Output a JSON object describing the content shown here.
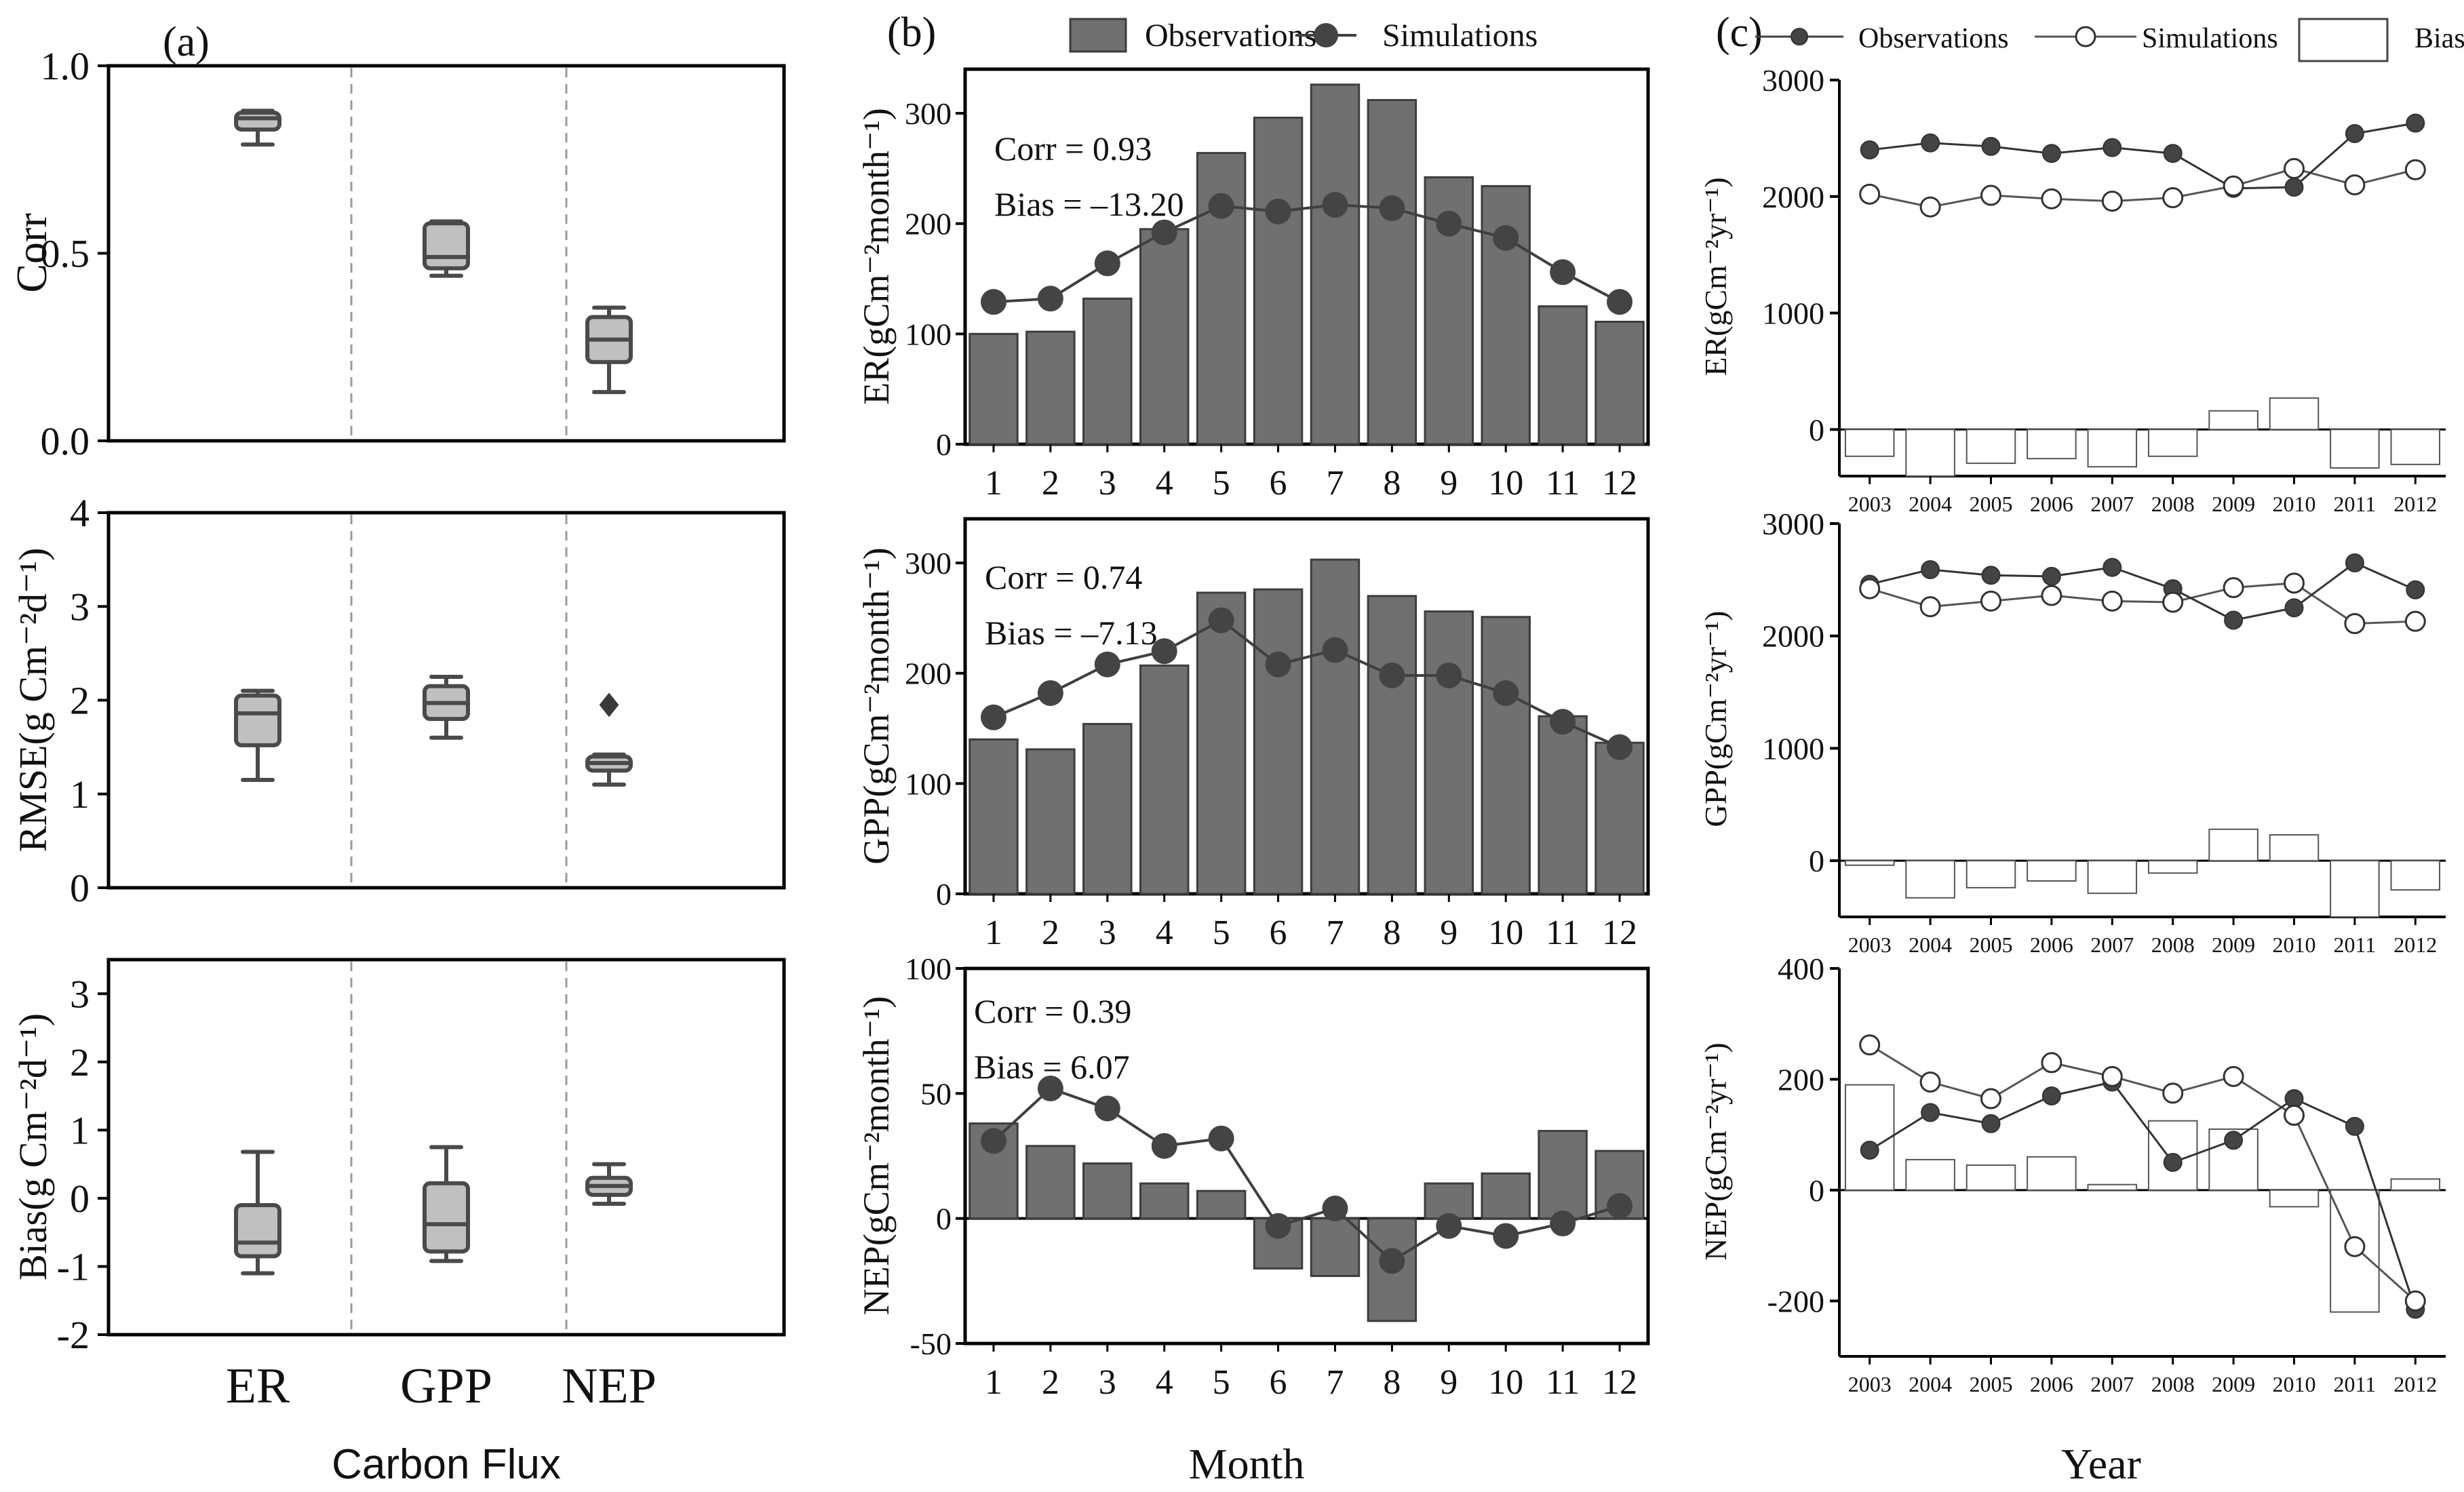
{
  "colors": {
    "axis": "#000000",
    "box_fill": "#c0c0c0",
    "box_edge": "#4a4a4a",
    "bar_fill": "#707070",
    "bar_edge": "#3d3d3d",
    "dot": "#444444",
    "line": "#3f3f3f",
    "sep": "#9a9a9a"
  },
  "panel_a": {
    "label": "(a)",
    "categories": [
      "ER",
      "GPP",
      "NEP"
    ],
    "xlabel": "Carbon Flux",
    "subplots": [
      {
        "ylabel": "Corr",
        "ylim": [
          0,
          1
        ],
        "yticks": [
          0,
          0.5,
          1
        ],
        "yticklabels": [
          "0.0",
          "0.5",
          "1.0"
        ],
        "boxes": [
          {
            "cat": "ER",
            "min": 0.79,
            "q1": 0.83,
            "median": 0.86,
            "q3": 0.875,
            "max": 0.88
          },
          {
            "cat": "GPP",
            "min": 0.44,
            "q1": 0.46,
            "median": 0.49,
            "q3": 0.58,
            "max": 0.585
          },
          {
            "cat": "NEP",
            "min": 0.13,
            "q1": 0.21,
            "median": 0.27,
            "q3": 0.33,
            "max": 0.355
          }
        ],
        "outliers": []
      },
      {
        "ylabel": "RMSE(g Cm⁻²d⁻¹)",
        "ylim": [
          0,
          4
        ],
        "yticks": [
          0,
          1,
          2,
          3,
          4
        ],
        "yticklabels": [
          "0",
          "1",
          "2",
          "3",
          "4"
        ],
        "boxes": [
          {
            "cat": "ER",
            "min": 1.15,
            "q1": 1.52,
            "median": 1.86,
            "q3": 2.05,
            "max": 2.1
          },
          {
            "cat": "GPP",
            "min": 1.6,
            "q1": 1.8,
            "median": 1.97,
            "q3": 2.15,
            "max": 2.25
          },
          {
            "cat": "NEP",
            "min": 1.1,
            "q1": 1.25,
            "median": 1.33,
            "q3": 1.4,
            "max": 1.42
          }
        ],
        "outliers": [
          {
            "cat": "NEP",
            "value": 1.95
          }
        ]
      },
      {
        "ylabel": "Bias(g Cm⁻²d⁻¹)",
        "ylim": [
          -2,
          3.5
        ],
        "yticks": [
          -2,
          -1,
          0,
          1,
          2,
          3
        ],
        "yticklabels": [
          "-2",
          "-1",
          "0",
          "1",
          "2",
          "3"
        ],
        "boxes": [
          {
            "cat": "ER",
            "min": -1.1,
            "q1": -0.85,
            "median": -0.65,
            "q3": -0.1,
            "max": 0.68
          },
          {
            "cat": "GPP",
            "min": -0.92,
            "q1": -0.78,
            "median": -0.38,
            "q3": 0.22,
            "max": 0.75
          },
          {
            "cat": "NEP",
            "min": -0.08,
            "q1": 0.05,
            "median": 0.18,
            "q3": 0.3,
            "max": 0.5
          }
        ],
        "outliers": []
      }
    ]
  },
  "panel_b": {
    "label": "(b)",
    "legend": {
      "obs": "Observations",
      "sim": "Simulations"
    },
    "xlabel": "Month",
    "months": [
      "1",
      "2",
      "3",
      "4",
      "5",
      "6",
      "7",
      "8",
      "9",
      "10",
      "11",
      "12"
    ],
    "subplots": [
      {
        "ylabel": "ER(gCm⁻²month⁻¹)",
        "ylim": [
          0,
          340
        ],
        "yticks": [
          0,
          100,
          200,
          300
        ],
        "corr_text": "Corr = 0.93",
        "bias_text": "Bias = –13.20",
        "obs": [
          100,
          102,
          132,
          195,
          264,
          296,
          326,
          312,
          242,
          234,
          125,
          111
        ],
        "sim": [
          129,
          132,
          164,
          192,
          216,
          211,
          217,
          214,
          200,
          187,
          156,
          129
        ]
      },
      {
        "ylabel": "GPP(gCm⁻²month⁻¹)",
        "ylim": [
          0,
          340
        ],
        "yticks": [
          0,
          100,
          200,
          300
        ],
        "corr_text": "Corr = 0.74",
        "bias_text": "Bias  = –7.13",
        "obs": [
          140,
          131,
          154,
          207,
          273,
          276,
          303,
          270,
          256,
          251,
          161,
          137
        ],
        "sim": [
          160,
          182,
          208,
          220,
          248,
          208,
          221,
          198,
          198,
          182,
          156,
          133
        ]
      },
      {
        "ylabel": "NEP(gCm⁻²month⁻¹)",
        "ylim": [
          -50,
          100
        ],
        "yticks": [
          -50,
          0,
          50,
          100
        ],
        "corr_text": "Corr = 0.39",
        "bias_text": "Bias = 6.07",
        "obs": [
          38,
          29,
          22,
          14,
          11,
          -20,
          -23,
          -41,
          14,
          18,
          35,
          27
        ],
        "sim": [
          31,
          52,
          44,
          29,
          32,
          -3,
          4,
          -17,
          -3,
          -7,
          -2,
          5
        ]
      }
    ]
  },
  "panel_c": {
    "label": "(c)",
    "legend": {
      "obs": "Observations",
      "sim": "Simulations",
      "bias": "Bias"
    },
    "xlabel": "Year",
    "years": [
      "2003",
      "2004",
      "2005",
      "2006",
      "2007",
      "2008",
      "2009",
      "2010",
      "2011",
      "2012"
    ],
    "subplots": [
      {
        "ylabel": "ER(gCm⁻²yr⁻¹)",
        "ylim": [
          -400,
          3000
        ],
        "yticks": [
          0,
          1000,
          2000,
          3000
        ],
        "obs": [
          2400,
          2460,
          2430,
          2370,
          2420,
          2370,
          2070,
          2080,
          2540,
          2630
        ],
        "sim": [
          2020,
          1910,
          2010,
          1980,
          1960,
          1990,
          2090,
          2240,
          2100,
          2230
        ],
        "bias": [
          -230,
          -400,
          -290,
          -250,
          -320,
          -230,
          160,
          270,
          -330,
          -300
        ]
      },
      {
        "ylabel": "GPP(gCm⁻²yr⁻¹)",
        "ylim": [
          -500,
          3000
        ],
        "yticks": [
          0,
          1000,
          2000,
          3000
        ],
        "obs": [
          2460,
          2590,
          2540,
          2530,
          2610,
          2420,
          2140,
          2250,
          2650,
          2410
        ],
        "sim": [
          2420,
          2260,
          2310,
          2360,
          2310,
          2300,
          2430,
          2470,
          2110,
          2130
        ],
        "bias": [
          -40,
          -330,
          -240,
          -180,
          -290,
          -110,
          280,
          230,
          -500,
          -260
        ]
      },
      {
        "ylabel": "NEP(gCm⁻²yr⁻¹)",
        "ylim": [
          -300,
          400
        ],
        "yticks": [
          -200,
          0,
          200,
          400
        ],
        "obs": [
          72,
          140,
          120,
          170,
          195,
          50,
          90,
          165,
          115,
          -215
        ],
        "sim": [
          262,
          195,
          165,
          230,
          205,
          175,
          205,
          135,
          -102,
          -200
        ],
        "bias": [
          190,
          55,
          45,
          60,
          10,
          125,
          110,
          -30,
          -220,
          20
        ]
      }
    ]
  }
}
